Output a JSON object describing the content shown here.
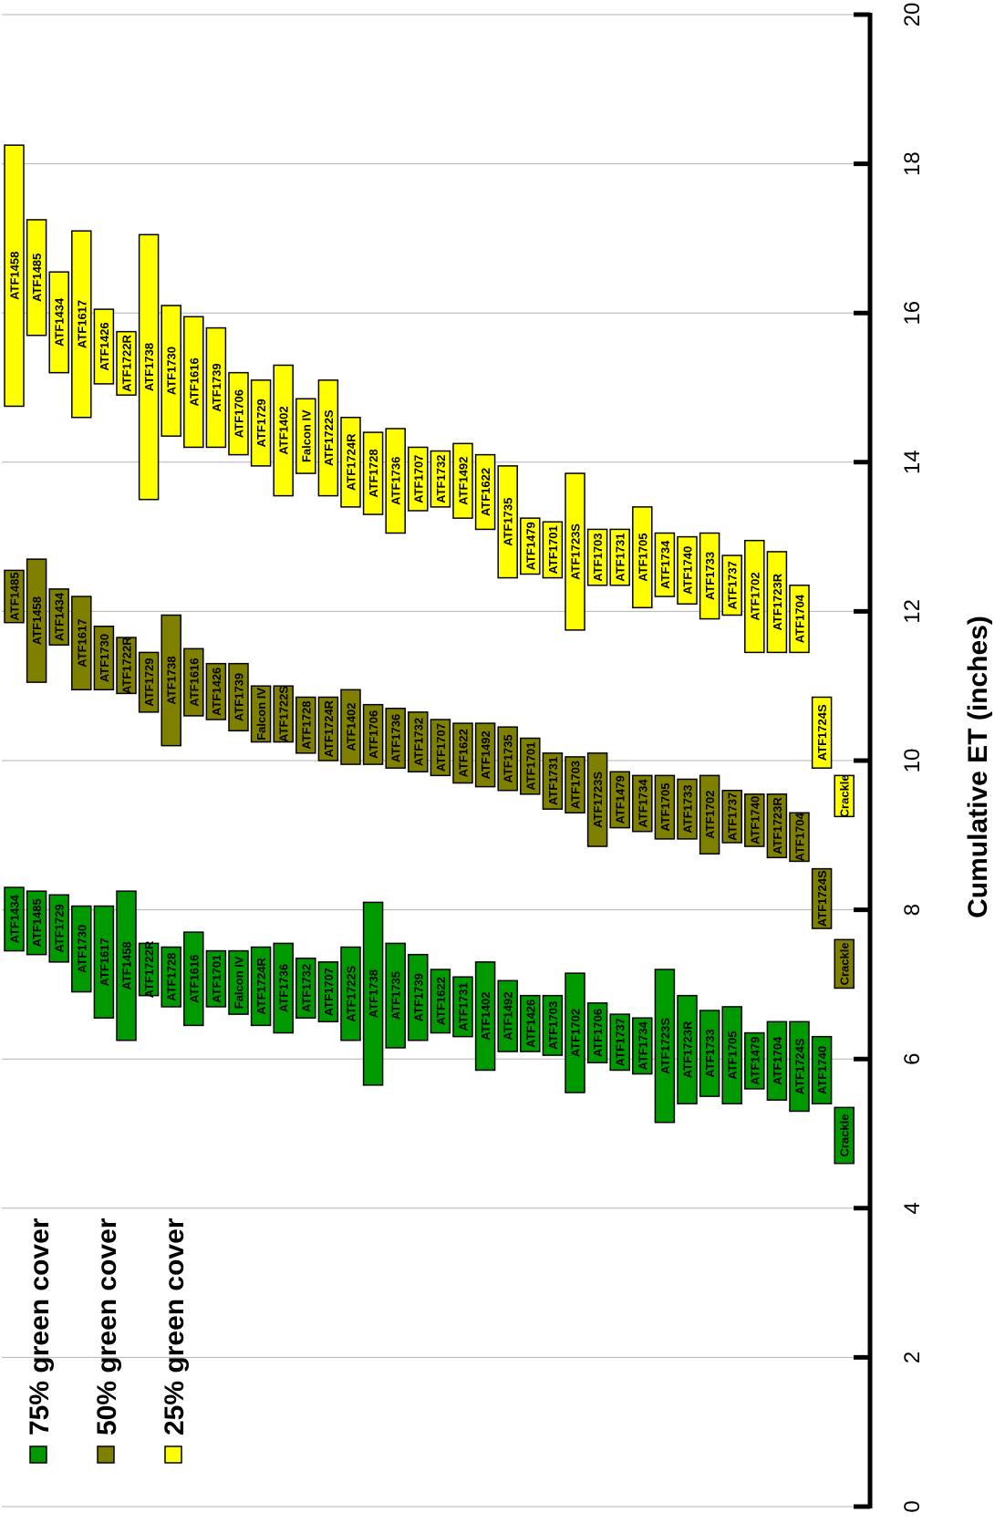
{
  "chart_data": {
    "type": "bar",
    "orientation": "floating-range",
    "xlabel": "Cumulative ET (inches)",
    "xlim": [
      0,
      20
    ],
    "ticks": [
      0,
      2,
      4,
      6,
      8,
      10,
      12,
      14,
      16,
      18,
      20
    ],
    "tick_labels": [
      "0",
      "2",
      "4",
      "6",
      "8",
      "10",
      "12",
      "14",
      "16",
      "18",
      "20"
    ],
    "grid": true,
    "legend_position": "bottom-left",
    "legend": [
      {
        "label": "75% green cover",
        "color": "#009900"
      },
      {
        "label": "50% green cover",
        "color": "#808000"
      },
      {
        "label": "25% green cover",
        "color": "#ffff00"
      }
    ],
    "series": [
      {
        "name": "75% green cover",
        "color": "#009900",
        "bars": [
          {
            "label": "ATF1434",
            "low": 7.45,
            "high": 8.3
          },
          {
            "label": "ATF1485",
            "low": 7.4,
            "high": 8.25
          },
          {
            "label": "ATF1729",
            "low": 7.3,
            "high": 8.2
          },
          {
            "label": "ATF1730",
            "low": 6.9,
            "high": 8.05
          },
          {
            "label": "ATF1617",
            "low": 6.55,
            "high": 8.05
          },
          {
            "label": "ATF1458",
            "low": 6.25,
            "high": 8.25
          },
          {
            "label": "ATF1722R",
            "low": 6.85,
            "high": 7.55
          },
          {
            "label": "ATF1728",
            "low": 6.7,
            "high": 7.5
          },
          {
            "label": "ATF1616",
            "low": 6.45,
            "high": 7.7
          },
          {
            "label": "ATF1701",
            "low": 6.7,
            "high": 7.45
          },
          {
            "label": "Falcon IV",
            "low": 6.6,
            "high": 7.45
          },
          {
            "label": "ATF1724R",
            "low": 6.45,
            "high": 7.5
          },
          {
            "label": "ATF1736",
            "low": 6.35,
            "high": 7.55
          },
          {
            "label": "ATF1732",
            "low": 6.55,
            "high": 7.35
          },
          {
            "label": "ATF1707",
            "low": 6.5,
            "high": 7.3
          },
          {
            "label": "ATF1722S",
            "low": 6.25,
            "high": 7.5
          },
          {
            "label": "ATF1738",
            "low": 5.65,
            "high": 8.1
          },
          {
            "label": "ATF1735",
            "low": 6.15,
            "high": 7.55
          },
          {
            "label": "ATF1739",
            "low": 6.25,
            "high": 7.4
          },
          {
            "label": "ATF1622",
            "low": 6.35,
            "high": 7.2
          },
          {
            "label": "ATF1731",
            "low": 6.3,
            "high": 7.1
          },
          {
            "label": "ATF1402",
            "low": 5.85,
            "high": 7.3
          },
          {
            "label": "ATF1492",
            "low": 6.1,
            "high": 7.05
          },
          {
            "label": "ATF1426",
            "low": 6.1,
            "high": 6.85
          },
          {
            "label": "ATF1703",
            "low": 6.05,
            "high": 6.85
          },
          {
            "label": "ATF1702",
            "low": 5.55,
            "high": 7.15
          },
          {
            "label": "ATF1706",
            "low": 5.95,
            "high": 6.75
          },
          {
            "label": "ATF1737",
            "low": 5.85,
            "high": 6.6
          },
          {
            "label": "ATF1734",
            "low": 5.8,
            "high": 6.55
          },
          {
            "label": "ATF1723S",
            "low": 5.15,
            "high": 7.2
          },
          {
            "label": "ATF1723R",
            "low": 5.4,
            "high": 6.85
          },
          {
            "label": "ATF1733",
            "low": 5.5,
            "high": 6.65
          },
          {
            "label": "ATF1705",
            "low": 5.4,
            "high": 6.7
          },
          {
            "label": "ATF1479",
            "low": 5.6,
            "high": 6.35
          },
          {
            "label": "ATF1704",
            "low": 5.45,
            "high": 6.5
          },
          {
            "label": "ATF1724S",
            "low": 5.3,
            "high": 6.5
          },
          {
            "label": "ATF1740",
            "low": 5.4,
            "high": 6.3
          },
          {
            "label": "Crackle",
            "low": 4.6,
            "high": 5.35
          }
        ]
      },
      {
        "name": "50% green cover",
        "color": "#808000",
        "bars": [
          {
            "label": "ATF1485",
            "low": 11.85,
            "high": 12.55
          },
          {
            "label": "ATF1458",
            "low": 11.05,
            "high": 12.7
          },
          {
            "label": "ATF1434",
            "low": 11.55,
            "high": 12.3
          },
          {
            "label": "ATF1617",
            "low": 10.95,
            "high": 12.2
          },
          {
            "label": "ATF1730",
            "low": 10.95,
            "high": 11.8
          },
          {
            "label": "ATF1722R",
            "low": 10.9,
            "high": 11.65
          },
          {
            "label": "ATF1729",
            "low": 10.65,
            "high": 11.45
          },
          {
            "label": "ATF1738",
            "low": 10.2,
            "high": 11.95
          },
          {
            "label": "ATF1616",
            "low": 10.6,
            "high": 11.5
          },
          {
            "label": "ATF1426",
            "low": 10.55,
            "high": 11.3
          },
          {
            "label": "ATF1739",
            "low": 10.4,
            "high": 11.3
          },
          {
            "label": "Falcon IV",
            "low": 10.25,
            "high": 11.0
          },
          {
            "label": "ATF1722S",
            "low": 10.25,
            "high": 11.0
          },
          {
            "label": "ATF1728",
            "low": 10.1,
            "high": 10.85
          },
          {
            "label": "ATF1724R",
            "low": 10.0,
            "high": 10.85
          },
          {
            "label": "ATF1402",
            "low": 9.95,
            "high": 10.95
          },
          {
            "label": "ATF1706",
            "low": 9.95,
            "high": 10.75
          },
          {
            "label": "ATF1736",
            "low": 9.9,
            "high": 10.7
          },
          {
            "label": "ATF1732",
            "low": 9.85,
            "high": 10.65
          },
          {
            "label": "ATF1707",
            "low": 9.8,
            "high": 10.55
          },
          {
            "label": "ATF1622",
            "low": 9.7,
            "high": 10.5
          },
          {
            "label": "ATF1492",
            "low": 9.65,
            "high": 10.5
          },
          {
            "label": "ATF1735",
            "low": 9.6,
            "high": 10.45
          },
          {
            "label": "ATF1701",
            "low": 9.55,
            "high": 10.3
          },
          {
            "label": "ATF1731",
            "low": 9.35,
            "high": 10.1
          },
          {
            "label": "ATF1703",
            "low": 9.3,
            "high": 10.05
          },
          {
            "label": "ATF1723S",
            "low": 8.85,
            "high": 10.1
          },
          {
            "label": "ATF1479",
            "low": 9.1,
            "high": 9.85
          },
          {
            "label": "ATF1734",
            "low": 9.05,
            "high": 9.8
          },
          {
            "label": "ATF1705",
            "low": 8.95,
            "high": 9.8
          },
          {
            "label": "ATF1733",
            "low": 8.95,
            "high": 9.75
          },
          {
            "label": "ATF1702",
            "low": 8.75,
            "high": 9.8
          },
          {
            "label": "ATF1737",
            "low": 8.9,
            "high": 9.6
          },
          {
            "label": "ATF1740",
            "low": 8.85,
            "high": 9.55
          },
          {
            "label": "ATF1723R",
            "low": 8.7,
            "high": 9.55
          },
          {
            "label": "ATF1704",
            "low": 8.65,
            "high": 9.3
          },
          {
            "label": "ATF1724S",
            "low": 7.75,
            "high": 8.55
          },
          {
            "label": "Crackle",
            "low": 6.95,
            "high": 7.6
          }
        ]
      },
      {
        "name": "25% green cover",
        "color": "#ffff00",
        "bars": [
          {
            "label": "ATF1458",
            "low": 14.75,
            "high": 18.25
          },
          {
            "label": "ATF1485",
            "low": 15.7,
            "high": 17.25
          },
          {
            "label": "ATF1434",
            "low": 15.2,
            "high": 16.55
          },
          {
            "label": "ATF1617",
            "low": 14.6,
            "high": 17.1
          },
          {
            "label": "ATF1426",
            "low": 15.05,
            "high": 16.05
          },
          {
            "label": "ATF1722R",
            "low": 14.9,
            "high": 15.75
          },
          {
            "label": "ATF1738",
            "low": 13.5,
            "high": 17.05
          },
          {
            "label": "ATF1730",
            "low": 14.35,
            "high": 16.1
          },
          {
            "label": "ATF1616",
            "low": 14.2,
            "high": 15.95
          },
          {
            "label": "ATF1739",
            "low": 14.2,
            "high": 15.8
          },
          {
            "label": "ATF1706",
            "low": 14.1,
            "high": 15.2
          },
          {
            "label": "ATF1729",
            "low": 13.95,
            "high": 15.1
          },
          {
            "label": "ATF1402",
            "low": 13.55,
            "high": 15.3
          },
          {
            "label": "Falcon IV",
            "low": 13.85,
            "high": 14.85
          },
          {
            "label": "ATF1722S",
            "low": 13.55,
            "high": 15.1
          },
          {
            "label": "ATF1724R",
            "low": 13.4,
            "high": 14.6
          },
          {
            "label": "ATF1728",
            "low": 13.3,
            "high": 14.4
          },
          {
            "label": "ATF1736",
            "low": 13.05,
            "high": 14.45
          },
          {
            "label": "ATF1707",
            "low": 13.35,
            "high": 14.2
          },
          {
            "label": "ATF1732",
            "low": 13.4,
            "high": 14.15
          },
          {
            "label": "ATF1492",
            "low": 13.25,
            "high": 14.25
          },
          {
            "label": "ATF1622",
            "low": 13.1,
            "high": 14.1
          },
          {
            "label": "ATF1735",
            "low": 12.45,
            "high": 13.95
          },
          {
            "label": "ATF1479",
            "low": 12.5,
            "high": 13.25
          },
          {
            "label": "ATF1701",
            "low": 12.45,
            "high": 13.2
          },
          {
            "label": "ATF1723S",
            "low": 11.75,
            "high": 13.85
          },
          {
            "label": "ATF1703",
            "low": 12.35,
            "high": 13.1
          },
          {
            "label": "ATF1731",
            "low": 12.35,
            "high": 13.1
          },
          {
            "label": "ATF1705",
            "low": 12.05,
            "high": 13.4
          },
          {
            "label": "ATF1734",
            "low": 12.2,
            "high": 13.05
          },
          {
            "label": "ATF1740",
            "low": 12.1,
            "high": 13.0
          },
          {
            "label": "ATF1733",
            "low": 11.9,
            "high": 13.05
          },
          {
            "label": "ATF1737",
            "low": 11.95,
            "high": 12.75
          },
          {
            "label": "ATF1702",
            "low": 11.45,
            "high": 12.95
          },
          {
            "label": "ATF1723R",
            "low": 11.45,
            "high": 12.8
          },
          {
            "label": "ATF1704",
            "low": 11.45,
            "high": 12.35
          },
          {
            "label": "ATF1724S",
            "low": 9.9,
            "high": 10.85
          },
          {
            "label": "Crackle",
            "low": 9.25,
            "high": 9.8
          }
        ]
      }
    ]
  }
}
